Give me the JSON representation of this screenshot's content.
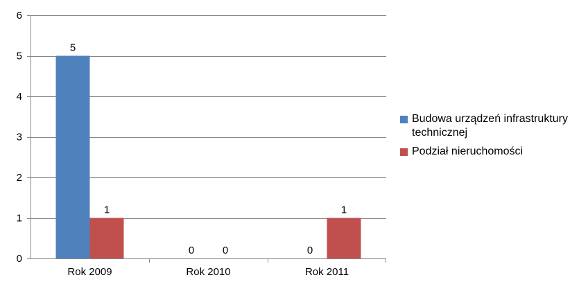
{
  "chart_data": {
    "type": "bar",
    "categories": [
      "Rok 2009",
      "Rok 2010",
      "Rok 2011"
    ],
    "series": [
      {
        "name": "Budowa urządzeń infrastruktury technicznej",
        "values": [
          5,
          0,
          0
        ],
        "color": "#4F81BD"
      },
      {
        "name": "Podział nieruchomości",
        "values": [
          1,
          0,
          1
        ],
        "color": "#C0504D"
      }
    ],
    "ylim": [
      0,
      6
    ],
    "yticks": [
      "0",
      "1",
      "2",
      "3",
      "4",
      "5",
      "6"
    ],
    "grid": true,
    "legend_position": "right",
    "data_labels": true
  }
}
